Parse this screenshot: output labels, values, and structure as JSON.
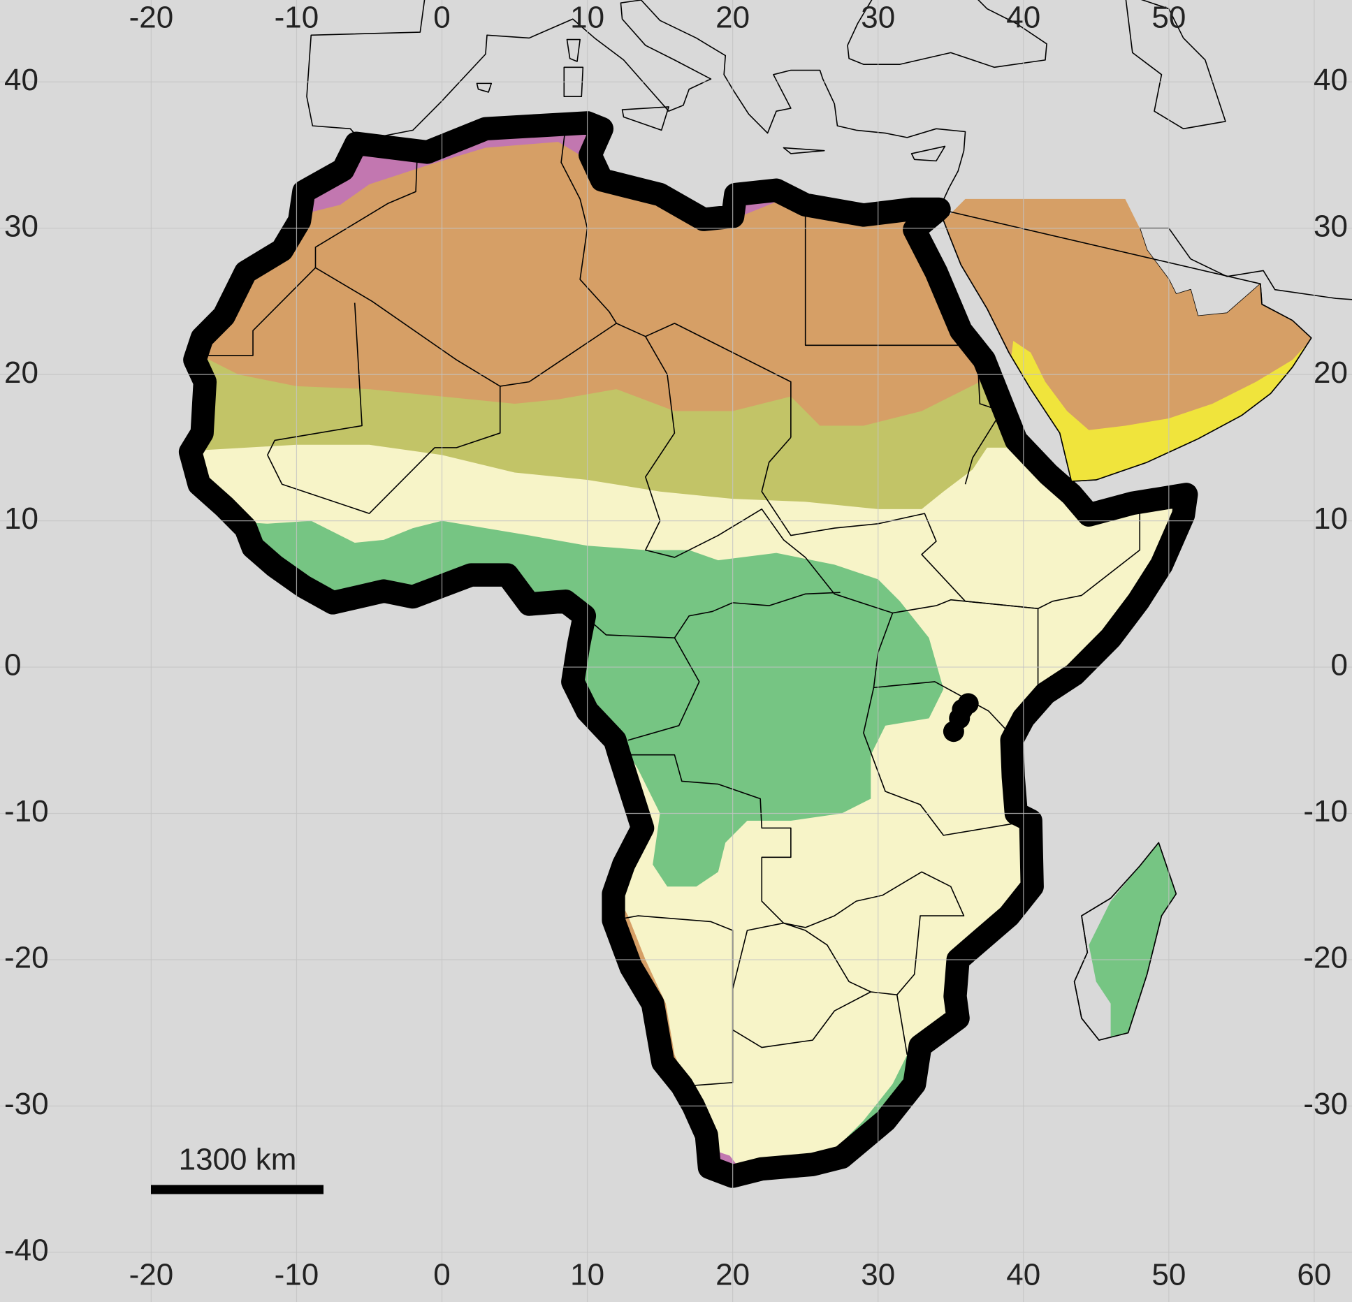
{
  "map": {
    "xlim": [
      -30.4,
      62.6
    ],
    "ylim": [
      -43.4,
      45.6
    ],
    "xticks": [
      -20,
      -10,
      0,
      10,
      20,
      30,
      40,
      50,
      60
    ],
    "yticks": [
      40,
      30,
      20,
      10,
      0,
      -10,
      -20,
      -30,
      -40
    ],
    "scale_bar": {
      "label": "1300 km"
    },
    "points": [
      {
        "lon": 36.2,
        "lat": -2.5
      },
      {
        "lon": 35.8,
        "lat": -2.9
      },
      {
        "lon": 35.6,
        "lat": -3.5
      },
      {
        "lon": 35.2,
        "lat": -4.4
      }
    ]
  }
}
